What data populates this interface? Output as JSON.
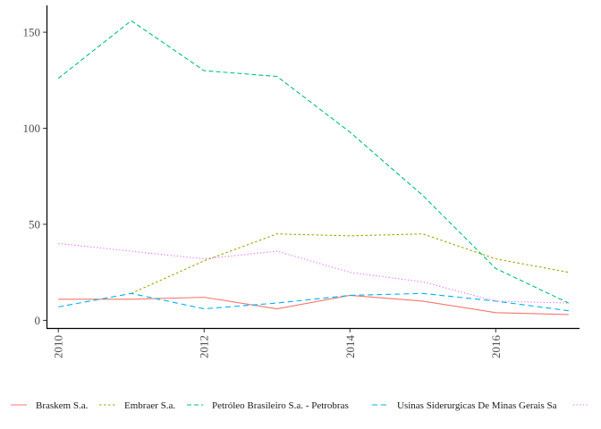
{
  "chart_data": {
    "type": "line",
    "title": "",
    "xlabel": "",
    "ylabel": "",
    "xlim": [
      2009.85,
      2017.15
    ],
    "ylim": [
      -4,
      164
    ],
    "xticks": [
      "2010",
      "2012",
      "2014",
      "2016"
    ],
    "yticks": [
      "0",
      "50",
      "100",
      "150"
    ],
    "x": [
      2010,
      2011,
      2012,
      2013,
      2014,
      2015,
      2016,
      2017
    ],
    "grid": false,
    "legend_position": "bottom",
    "series": [
      {
        "name": "Braskem S.a.",
        "color": "#F8766D",
        "dash": "solid",
        "values": [
          11,
          11,
          12,
          6,
          13,
          10,
          4,
          3
        ]
      },
      {
        "name": "Embraer S.a.",
        "color": "#A3A500",
        "dash": "dotted-short",
        "values": [
          null,
          14,
          31,
          45,
          44,
          45,
          32,
          25
        ]
      },
      {
        "name": "Petróleo Brasileiro  S.a.  - Petrobras",
        "color": "#00BF7D",
        "dash": "dashed",
        "values": [
          126,
          156,
          130,
          127,
          98,
          65,
          27,
          9
        ]
      },
      {
        "name": "Usinas Siderurgicas De Minas Gerais Sa",
        "color": "#00B0F6",
        "dash": "longdash",
        "values": [
          7,
          14,
          6,
          9,
          13,
          14,
          10,
          5
        ]
      },
      {
        "name": "",
        "color": "#E76BF3",
        "dash": "dotted",
        "values": [
          40,
          36,
          32,
          36,
          25,
          20,
          10,
          9
        ]
      }
    ]
  }
}
